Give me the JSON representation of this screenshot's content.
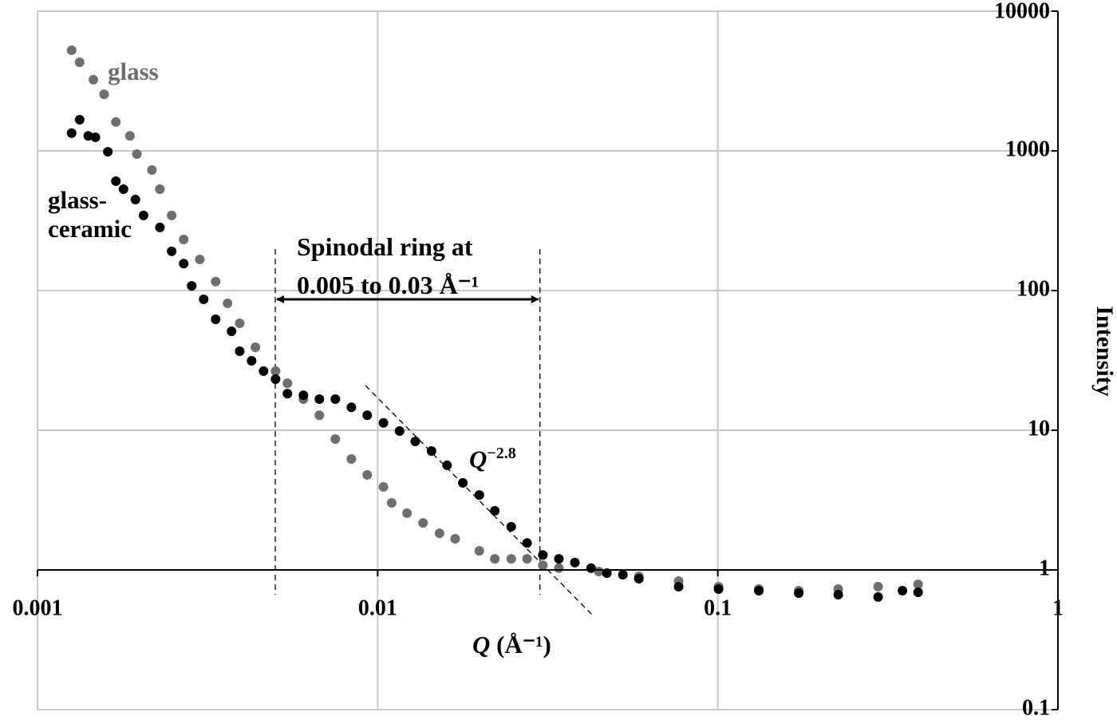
{
  "chart_data": {
    "type": "scatter",
    "xlabel": {
      "symbol": "Q",
      "unit": "(Å⁻¹)"
    },
    "ylabel": "Intensity",
    "log_x": true,
    "log_y": true,
    "grid": true,
    "xlim": [
      0.001,
      1
    ],
    "xticks": [
      0.001,
      0.01,
      0.1,
      1
    ],
    "ylim": [
      0.1,
      10000
    ],
    "yticks": [
      0.1,
      1,
      10,
      100,
      1000,
      10000
    ],
    "series": [
      {
        "name": "glass",
        "color": "#6e6e6e",
        "x": [
          0.00126,
          0.00133,
          0.00146,
          0.00157,
          0.0017,
          0.00187,
          0.00196,
          0.00217,
          0.00229,
          0.00248,
          0.00269,
          0.003,
          0.00334,
          0.00362,
          0.00393,
          0.00437,
          0.00501,
          0.00543,
          0.00605,
          0.00674,
          0.00751,
          0.00837,
          0.00932,
          0.0104,
          0.011,
          0.0122,
          0.0136,
          0.0152,
          0.0169,
          0.0199,
          0.0221,
          0.0247,
          0.0275,
          0.0306,
          0.0341,
          0.0447,
          0.0586,
          0.0767,
          0.1005,
          0.132,
          0.173,
          0.226,
          0.296,
          0.388
        ],
        "values": [
          5250,
          4310,
          3230,
          2540,
          1610,
          1280,
          949,
          729,
          532,
          345,
          232,
          167,
          116,
          81.0,
          58.3,
          39.3,
          26.5,
          21.7,
          16.7,
          12.8,
          8.65,
          6.23,
          4.79,
          3.93,
          3.02,
          2.55,
          2.17,
          1.83,
          1.67,
          1.37,
          1.2,
          1.2,
          1.2,
          1.08,
          1.03,
          0.974,
          0.9,
          0.832,
          0.759,
          0.729,
          0.71,
          0.729,
          0.759,
          0.789
        ]
      },
      {
        "name": "glass-ceramic",
        "color": "#000000",
        "x": [
          0.00126,
          0.00133,
          0.00141,
          0.00148,
          0.00161,
          0.0017,
          0.00179,
          0.00194,
          0.00205,
          0.00229,
          0.00248,
          0.00269,
          0.00284,
          0.00308,
          0.00334,
          0.00372,
          0.00393,
          0.00426,
          0.00462,
          0.00501,
          0.00543,
          0.00605,
          0.00674,
          0.00751,
          0.00837,
          0.00932,
          0.0104,
          0.0116,
          0.0129,
          0.0144,
          0.016,
          0.0178,
          0.0199,
          0.0221,
          0.0247,
          0.0275,
          0.0306,
          0.0341,
          0.038,
          0.0424,
          0.0472,
          0.0526,
          0.0586,
          0.0767,
          0.1005,
          0.132,
          0.173,
          0.226,
          0.296,
          0.349,
          0.388
        ],
        "values": [
          1340,
          1670,
          1280,
          1250,
          986,
          607,
          532,
          448,
          345,
          283,
          191,
          156,
          108,
          86.5,
          62.3,
          51.1,
          36.8,
          31.4,
          26.5,
          23.2,
          18.3,
          17.8,
          16.7,
          16.7,
          14.6,
          12.8,
          11.3,
          9.87,
          8.32,
          7.1,
          5.61,
          4.2,
          3.44,
          2.65,
          2.04,
          1.56,
          1.28,
          1.2,
          1.13,
          1.03,
          0.949,
          0.924,
          0.865,
          0.759,
          0.729,
          0.71,
          0.683,
          0.665,
          0.64,
          0.71,
          0.692
        ]
      }
    ],
    "annotations": {
      "spinodal_lines": [
        "Spinodal ring at",
        "0.005 to 0.03 Å⁻¹"
      ],
      "spinodal_range": [
        0.005,
        0.03
      ],
      "slope": {
        "symbol": "Q",
        "exponent": "−2.8"
      }
    }
  }
}
